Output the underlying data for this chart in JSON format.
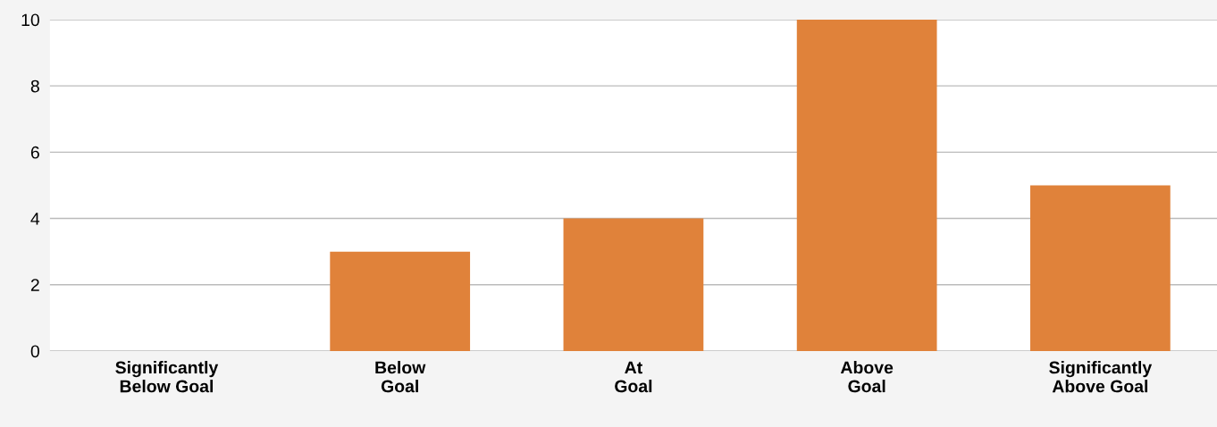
{
  "chart_data": {
    "type": "bar",
    "categories": [
      "Significantly\nBelow Goal",
      "Below\nGoal",
      "At\nGoal",
      "Above\nGoal",
      "Significantly\nAbove Goal"
    ],
    "values": [
      0,
      3,
      4,
      10,
      5
    ],
    "color": "#e0823a",
    "ylim": [
      0,
      10
    ],
    "yticks": [
      0,
      2,
      4,
      6,
      8,
      10
    ],
    "grid": "y",
    "legend": false
  }
}
